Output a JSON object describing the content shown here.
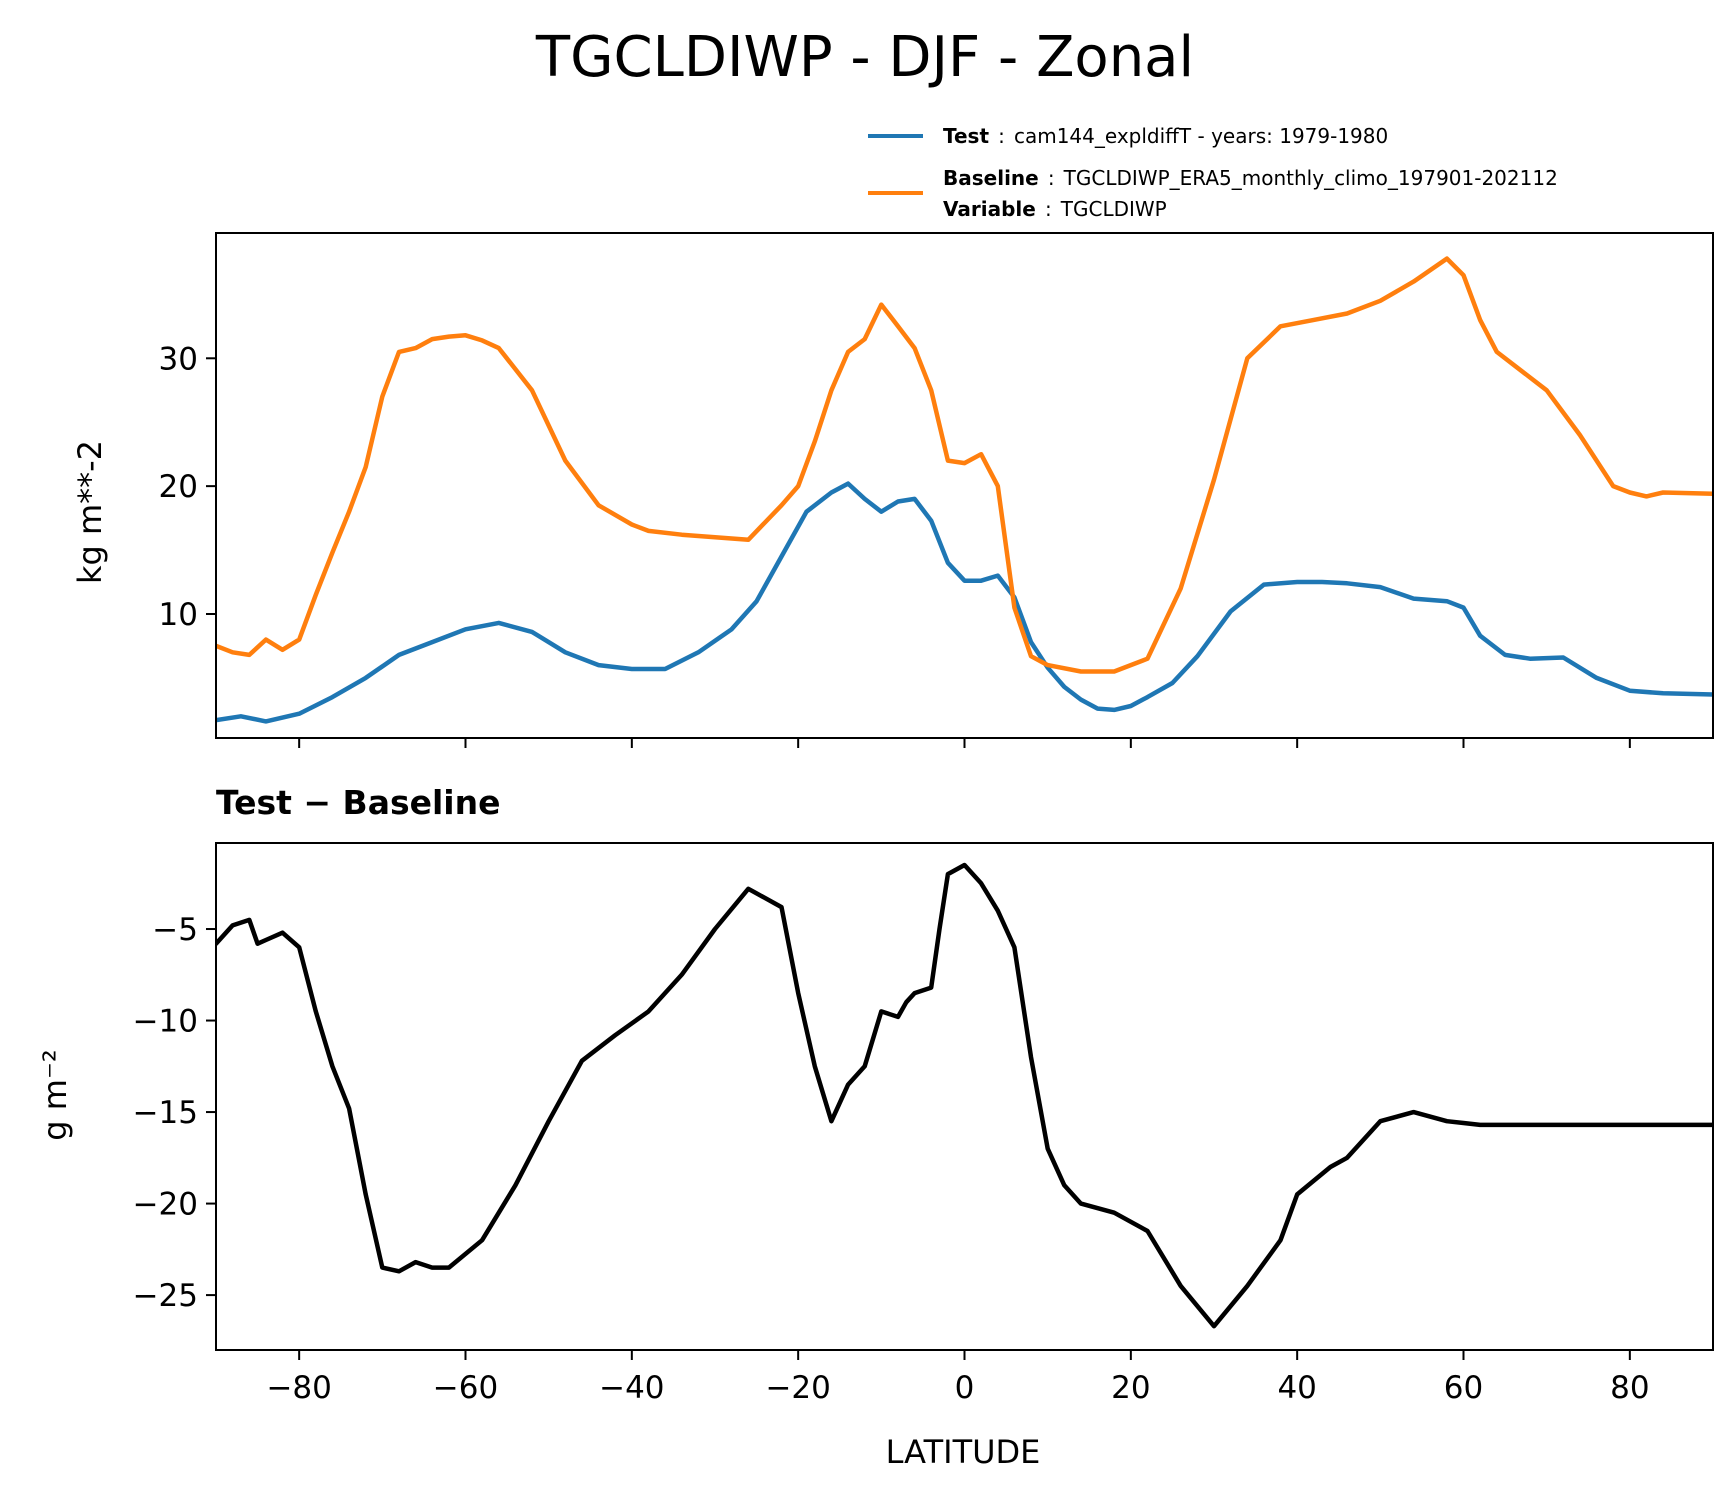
{
  "title": "TGCLDIWP - DJF - Zonal",
  "legend": {
    "test": {
      "key": "Test",
      "text": "cam144_expldiffT - years: 1979-1980",
      "color": "#1f77b4"
    },
    "baseline": {
      "key": "Baseline",
      "text": "TGCLDIWP_ERA5_monthly_climo_197901-202112",
      "color": "#ff7f0e"
    },
    "variable": {
      "key": "Variable",
      "text": "TGCLDIWP"
    }
  },
  "chart_data": [
    {
      "type": "line",
      "panel": "top",
      "ylabel": "kg m**-2",
      "xlim": [
        -90,
        90
      ],
      "ylim": [
        0.3,
        39.8
      ],
      "yticks": [
        10,
        20,
        30
      ],
      "xticks": [
        -80,
        -60,
        -40,
        -20,
        0,
        20,
        40,
        60,
        80
      ],
      "show_x_ticklabels": false,
      "series": [
        {
          "name": "Test",
          "color": "#1f77b4",
          "x": [
            -90,
            -87,
            -84,
            -80,
            -76,
            -72,
            -68,
            -64,
            -60,
            -56,
            -52,
            -48,
            -44,
            -40,
            -36,
            -32,
            -28,
            -25,
            -22,
            -19,
            -16,
            -14,
            -12,
            -10,
            -8,
            -6,
            -4,
            -2,
            0,
            2,
            4,
            6,
            8,
            10,
            12,
            14,
            16,
            18,
            20,
            22,
            25,
            28,
            32,
            36,
            40,
            43,
            46,
            50,
            54,
            58,
            60,
            62,
            65,
            68,
            72,
            76,
            80,
            84,
            90
          ],
          "y": [
            1.7,
            2.0,
            1.6,
            2.2,
            3.5,
            5.0,
            6.8,
            7.8,
            8.8,
            9.3,
            8.6,
            7.0,
            6.0,
            5.7,
            5.7,
            7.0,
            8.8,
            11.0,
            14.5,
            18.0,
            19.5,
            20.2,
            19.0,
            18.0,
            18.8,
            19.0,
            17.3,
            14.0,
            12.6,
            12.6,
            13.0,
            11.3,
            7.8,
            5.8,
            4.3,
            3.3,
            2.6,
            2.5,
            2.8,
            3.5,
            4.6,
            6.7,
            10.2,
            12.3,
            12.5,
            12.5,
            12.4,
            12.1,
            11.2,
            11.0,
            10.5,
            8.3,
            6.8,
            6.5,
            6.6,
            5.0,
            4.0,
            3.8,
            3.7
          ]
        },
        {
          "name": "Baseline",
          "color": "#ff7f0e",
          "x": [
            -90,
            -88,
            -86,
            -84,
            -82,
            -80,
            -78,
            -76,
            -74,
            -72,
            -70,
            -68,
            -66,
            -64,
            -62,
            -60,
            -58,
            -56,
            -52,
            -48,
            -44,
            -40,
            -38,
            -34,
            -30,
            -26,
            -22,
            -20,
            -18,
            -16,
            -14,
            -12,
            -10,
            -8,
            -6,
            -4,
            -2,
            0,
            2,
            4,
            6,
            8,
            10,
            14,
            18,
            22,
            26,
            30,
            34,
            38,
            42,
            46,
            50,
            54,
            58,
            60,
            62,
            64,
            66,
            70,
            74,
            78,
            80,
            82,
            84,
            90
          ],
          "y": [
            7.5,
            7.0,
            6.8,
            8.0,
            7.2,
            8.0,
            11.5,
            14.8,
            18.0,
            21.5,
            27.0,
            30.5,
            30.8,
            31.5,
            31.7,
            31.8,
            31.4,
            30.8,
            27.5,
            22.0,
            18.5,
            17.0,
            16.5,
            16.2,
            16.0,
            15.8,
            18.5,
            20.0,
            23.5,
            27.5,
            30.5,
            31.5,
            34.2,
            32.5,
            30.8,
            27.5,
            22.0,
            21.8,
            22.5,
            20.0,
            10.5,
            6.7,
            6.0,
            5.5,
            5.5,
            6.5,
            12.0,
            20.5,
            30.0,
            32.5,
            33.0,
            33.5,
            34.5,
            36.0,
            37.8,
            36.5,
            33.0,
            30.5,
            29.5,
            27.5,
            24.0,
            20.0,
            19.5,
            19.2,
            19.5,
            19.4
          ]
        }
      ]
    },
    {
      "type": "line",
      "panel": "bottom",
      "title": "Test − Baseline",
      "xlabel": "LATITUDE",
      "ylabel": "g m⁻²",
      "xlim": [
        -90,
        90
      ],
      "ylim": [
        -28,
        -0.3
      ],
      "yticks": [
        -25,
        -20,
        -15,
        -10,
        -5
      ],
      "xticks": [
        -80,
        -60,
        -40,
        -20,
        0,
        20,
        40,
        60,
        80
      ],
      "series": [
        {
          "name": "Test − Baseline",
          "color": "#000000",
          "x": [
            -90,
            -88,
            -86,
            -85,
            -84,
            -82,
            -80,
            -78,
            -76,
            -74,
            -72,
            -70,
            -68,
            -66,
            -64,
            -62,
            -58,
            -54,
            -50,
            -46,
            -42,
            -38,
            -34,
            -30,
            -26,
            -22,
            -20,
            -18,
            -16,
            -14,
            -12,
            -10,
            -8,
            -7,
            -6,
            -4,
            -3,
            -2,
            0,
            2,
            4,
            6,
            8,
            10,
            12,
            14,
            18,
            22,
            26,
            30,
            34,
            38,
            40,
            44,
            46,
            50,
            54,
            58,
            60,
            62,
            64,
            66,
            70,
            72,
            74,
            76,
            80,
            82,
            84,
            86,
            90
          ],
          "y": [
            -5.8,
            -4.8,
            -4.5,
            -5.8,
            -5.6,
            -5.2,
            -6.0,
            -9.5,
            -12.5,
            -14.8,
            -19.5,
            -23.5,
            -23.7,
            -23.2,
            -23.5,
            -23.5,
            -22.0,
            -19.0,
            -15.5,
            -12.2,
            -10.8,
            -9.5,
            -7.5,
            -5.0,
            -2.8,
            -3.8,
            -8.5,
            -12.5,
            -15.5,
            -13.5,
            -12.5,
            -9.5,
            -9.8,
            -9.0,
            -8.5,
            -8.2,
            -5.0,
            -2.0,
            -1.5,
            -2.5,
            -4.0,
            -6.0,
            -12.0,
            -17.0,
            -19.0,
            -20.0,
            -20.5,
            -21.5,
            -24.5,
            -26.7,
            -24.5,
            -22.0,
            -19.5,
            -18.0,
            -17.5,
            -15.5,
            -15.0,
            -15.5,
            -15.6,
            -15.7,
            -15.7,
            -15.7,
            -15.7,
            -15.7,
            -15.7,
            -15.7,
            -15.7,
            -15.7,
            -15.7,
            -15.7,
            -15.7
          ]
        }
      ]
    }
  ]
}
